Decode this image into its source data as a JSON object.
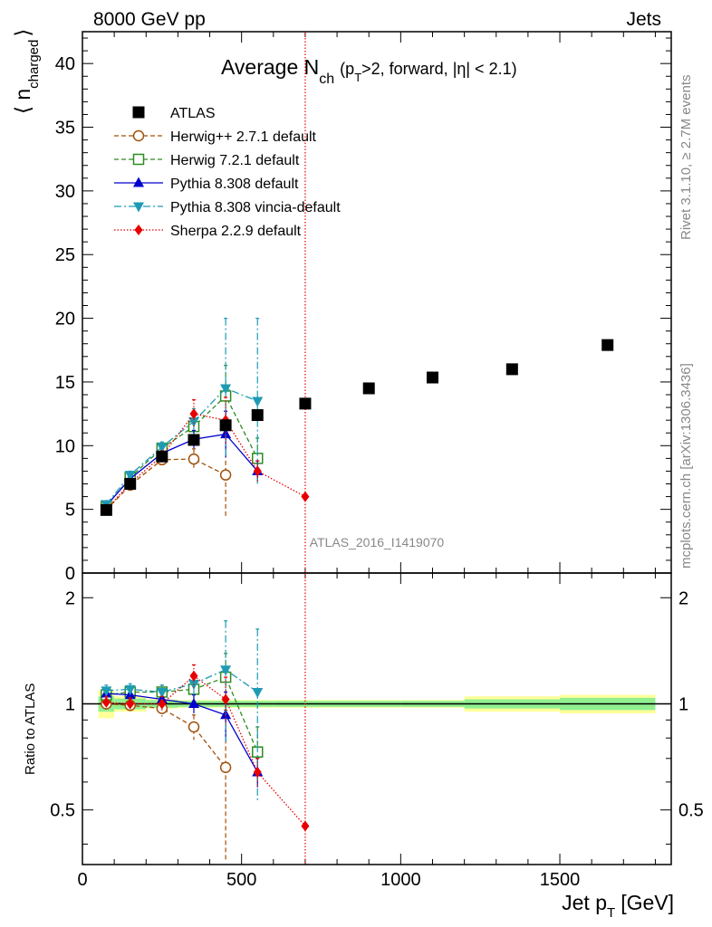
{
  "header": {
    "left": "8000 GeV pp",
    "right": "Jets"
  },
  "side_labels": {
    "rivet": "Rivet 3.1.10, ≥ 2.7M events",
    "mcplots": "mcplots.cern.ch [arXiv:1306.3436]"
  },
  "watermark": "ATLAS_2016_I1419070",
  "colors": {
    "atlas": "#000000",
    "herwigpp": "#a0500a",
    "herwig7": "#2e8b20",
    "pythia": "#0000cc",
    "vincia": "#1e9bb4",
    "sherpa": "#e60000",
    "band_yellow": "#ffff99",
    "band_green": "#90f090"
  },
  "chart_data": {
    "type": "scatter",
    "title_main": "Average N",
    "title_sub": "ch",
    "title_cond": "(p",
    "title_cond_sub": "T",
    "title_cond_rest": ">2, forward, |η| < 2.1)",
    "ylabel_main": "⟨ n",
    "ylabel_sub": "charged",
    "ylabel_close": "⟩",
    "xlabel_main": "Jet p",
    "xlabel_sub": "T",
    "xlabel_unit": "[GeV]",
    "ratio_ylabel": "Ratio to ATLAS",
    "xlim": [
      0,
      1850
    ],
    "ylim": [
      0,
      42.5
    ],
    "ratio_ylim": [
      0.35,
      2.35
    ],
    "xticks": [
      "0",
      "500",
      "1000",
      "1500"
    ],
    "yticks": [
      "0",
      "5",
      "10",
      "15",
      "20",
      "25",
      "30",
      "35",
      "40"
    ],
    "ratio_yticks": [
      "0.5",
      "1",
      "2"
    ],
    "vline_x": 700,
    "legend": "top-left",
    "series": [
      {
        "name": "ATLAS",
        "x": [
          75,
          150,
          250,
          350,
          450,
          550,
          700,
          900,
          1100,
          1350,
          1650
        ],
        "y": [
          4.95,
          7.0,
          9.15,
          10.45,
          11.6,
          12.4,
          13.3,
          14.5,
          15.35,
          16.0,
          17.9
        ],
        "ratio": [
          1,
          1,
          1,
          1,
          1,
          1,
          1,
          1,
          1,
          1,
          1
        ]
      },
      {
        "name": "Herwig++ 2.7.1 default",
        "x": [
          75,
          150,
          250,
          350,
          450
        ],
        "y": [
          4.95,
          6.9,
          8.9,
          8.95,
          7.7
        ],
        "err": [
          0.2,
          0.3,
          0.4,
          0.8,
          3.4
        ],
        "ratio": [
          1.0,
          0.99,
          0.97,
          0.86,
          0.66
        ],
        "ratio_err": [
          0.04,
          0.04,
          0.05,
          0.07,
          0.3
        ]
      },
      {
        "name": "Herwig 7.2.1 default",
        "x": [
          75,
          150,
          250,
          350,
          450,
          550
        ],
        "y": [
          5.25,
          7.5,
          9.8,
          11.5,
          13.9,
          9.0
        ],
        "err": [
          0.2,
          0.3,
          0.4,
          0.9,
          2.4,
          1.6
        ],
        "ratio": [
          1.06,
          1.08,
          1.08,
          1.1,
          1.19,
          0.73
        ],
        "ratio_err": [
          0.04,
          0.04,
          0.05,
          0.08,
          0.2,
          0.13
        ]
      },
      {
        "name": "Pythia 8.308 default",
        "x": [
          75,
          150,
          250,
          350,
          450,
          550
        ],
        "y": [
          5.3,
          7.4,
          9.4,
          10.5,
          10.9,
          8.0
        ],
        "err": [
          0.2,
          0.3,
          0.4,
          0.7,
          1.8,
          0.8
        ],
        "ratio": [
          1.07,
          1.06,
          1.03,
          1.0,
          0.93,
          0.64
        ],
        "ratio_err": [
          0.04,
          0.04,
          0.05,
          0.06,
          0.15,
          0.06
        ]
      },
      {
        "name": "Pythia 8.308 vincia-default",
        "x": [
          75,
          150,
          250,
          350,
          450,
          550
        ],
        "y": [
          5.4,
          7.7,
          9.9,
          11.9,
          14.5,
          13.5
        ],
        "err": [
          0.2,
          0.3,
          0.4,
          1.0,
          5.5,
          6.5
        ],
        "ratio": [
          1.09,
          1.1,
          1.08,
          1.14,
          1.25,
          1.08
        ],
        "ratio_err": [
          0.04,
          0.04,
          0.05,
          0.08,
          0.47,
          0.55
        ]
      },
      {
        "name": "Sherpa 2.2.9 default",
        "x": [
          75,
          150,
          250,
          350,
          450,
          550,
          700
        ],
        "y": [
          5.0,
          7.05,
          9.2,
          12.5,
          12.0,
          8.0,
          6.0
        ],
        "err": [
          0.2,
          0.3,
          0.4,
          1.1,
          1.8,
          0.8,
          0.0
        ],
        "ratio": [
          1.01,
          1.0,
          1.0,
          1.2,
          1.03,
          0.64,
          0.45
        ],
        "ratio_err": [
          0.04,
          0.04,
          0.05,
          0.09,
          0.16,
          0.06,
          0.0
        ]
      }
    ],
    "ratio_bands": {
      "edges": [
        50,
        100,
        200,
        300,
        400,
        500,
        600,
        800,
        1000,
        1200,
        1500,
        1800
      ],
      "green": [
        0.05,
        0.035,
        0.025,
        0.02,
        0.02,
        0.02,
        0.02,
        0.02,
        0.02,
        0.03,
        0.04
      ],
      "yellow": [
        0.09,
        0.05,
        0.03,
        0.025,
        0.025,
        0.025,
        0.025,
        0.025,
        0.025,
        0.05,
        0.06
      ]
    }
  }
}
